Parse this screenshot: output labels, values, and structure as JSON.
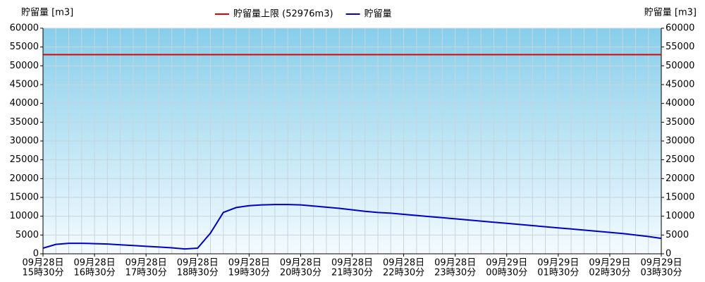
{
  "chart_data": {
    "type": "line",
    "y_label": "貯留量 [m3]",
    "y2_label": "貯留量 [m3]",
    "reference_line": {
      "name": "貯留量上限 (52976m3)",
      "value": 52976,
      "color": "#e00000"
    },
    "categories": [
      [
        "09月28日",
        "15時30分"
      ],
      null,
      null,
      null,
      [
        "09月28日",
        "16時30分"
      ],
      null,
      null,
      null,
      [
        "09月28日",
        "17時30分"
      ],
      null,
      null,
      null,
      [
        "09月28日",
        "18時30分"
      ],
      null,
      null,
      null,
      [
        "09月28日",
        "19時30分"
      ],
      null,
      null,
      null,
      [
        "09月28日",
        "20時30分"
      ],
      null,
      null,
      null,
      [
        "09月28日",
        "21時30分"
      ],
      null,
      null,
      null,
      [
        "09月28日",
        "22時30分"
      ],
      null,
      null,
      null,
      [
        "09月28日",
        "23時30分"
      ],
      null,
      null,
      null,
      [
        "09月29日",
        "00時30分"
      ],
      null,
      null,
      null,
      [
        "09月29日",
        "01時30分"
      ],
      null,
      null,
      null,
      [
        "09月29日",
        "02時30分"
      ],
      null,
      null,
      null,
      [
        "09月29日",
        "03時30分"
      ]
    ],
    "series": [
      {
        "name": "貯留量",
        "color": "#0000c8",
        "values": [
          1500,
          2500,
          2800,
          2800,
          2700,
          2600,
          2400,
          2200,
          2000,
          1800,
          1600,
          1300,
          1500,
          5500,
          11000,
          12300,
          12800,
          13000,
          13100,
          13100,
          13000,
          12700,
          12400,
          12100,
          11700,
          11300,
          11000,
          10800,
          10500,
          10200,
          9900,
          9600,
          9300,
          9000,
          8700,
          8400,
          8100,
          7800,
          7500,
          7200,
          6900,
          6600,
          6300,
          6000,
          5700,
          5400,
          5000,
          4600,
          4100
        ]
      }
    ],
    "ylim": [
      0,
      60000
    ],
    "yticks": [
      0,
      5000,
      10000,
      15000,
      20000,
      25000,
      30000,
      35000,
      40000,
      45000,
      50000,
      55000,
      60000
    ],
    "y2lim": [
      0,
      60000
    ],
    "y2ticks": [
      0,
      5000,
      10000,
      15000,
      20000,
      25000,
      30000,
      35000,
      40000,
      45000,
      50000,
      55000,
      60000
    ],
    "grid": true
  }
}
